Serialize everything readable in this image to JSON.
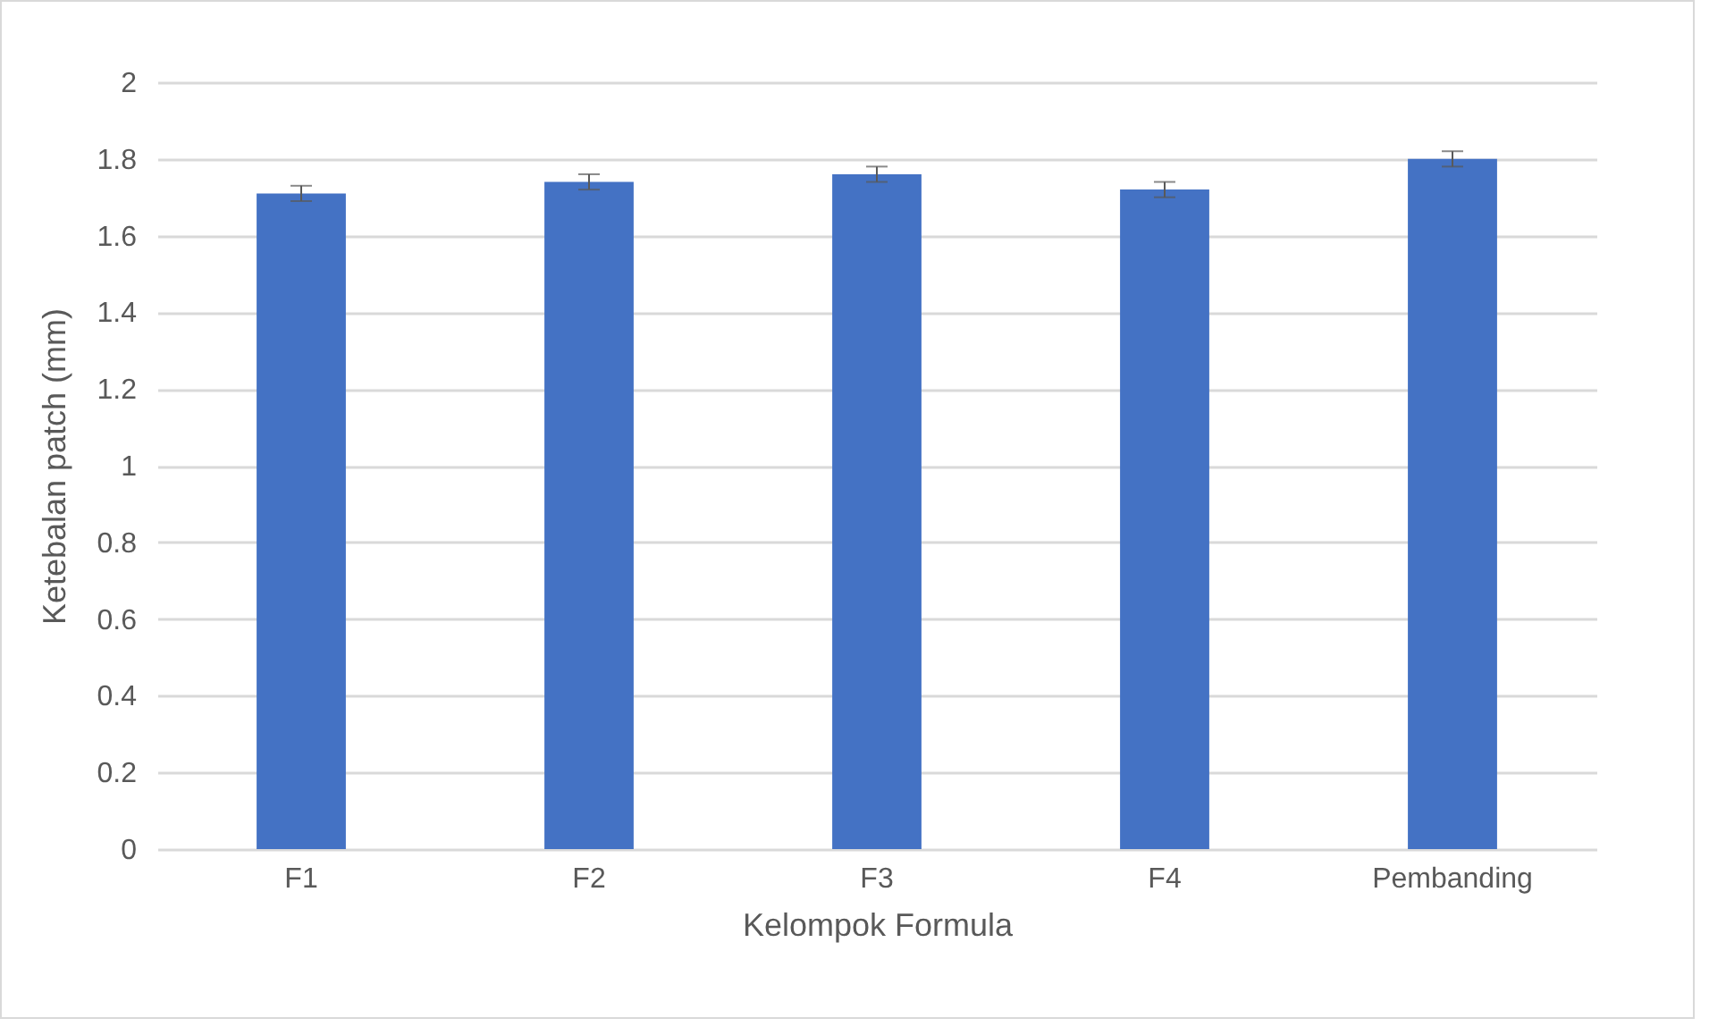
{
  "chart_data": {
    "type": "bar",
    "xlabel": "Kelompok Formula",
    "ylabel": "Ketebalan patch (mm)",
    "categories": [
      "F1",
      "F2",
      "F3",
      "F4",
      "Pembanding"
    ],
    "values": [
      1.71,
      1.74,
      1.76,
      1.72,
      1.8
    ],
    "errors": [
      0.02,
      0.02,
      0.02,
      0.02,
      0.02
    ],
    "color": "#4472c4",
    "ylim": [
      0,
      2
    ],
    "yticks": [
      0,
      0.2,
      0.4,
      0.6,
      0.8,
      1,
      1.2,
      1.4,
      1.6,
      1.8,
      2
    ],
    "grid": "y"
  }
}
